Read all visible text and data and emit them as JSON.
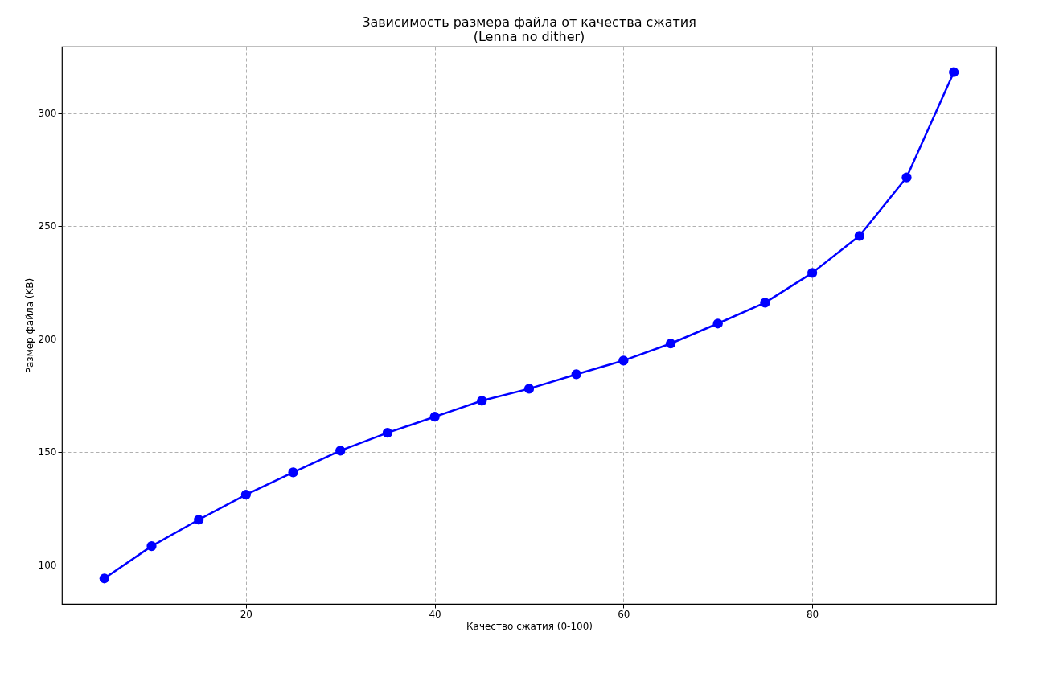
{
  "chart_data": {
    "type": "line",
    "title": "Зависимость размера файла от качества сжатия\n(Lenna no dither)",
    "xlabel": "Качество сжатия (0-100)",
    "ylabel": "Размер файла (KB)",
    "x": [
      5,
      10,
      15,
      20,
      25,
      30,
      35,
      40,
      45,
      50,
      55,
      60,
      65,
      70,
      75,
      80,
      85,
      90,
      95
    ],
    "series": [
      {
        "color": "#0000ff",
        "values": [
          93.9,
          108.2,
          119.9,
          131.0,
          140.9,
          150.5,
          158.4,
          165.5,
          172.6,
          177.9,
          184.3,
          190.4,
          197.9,
          206.8,
          216.0,
          229.2,
          245.6,
          271.5,
          318.1
        ]
      }
    ],
    "xlim": [
      0.5,
      99.5
    ],
    "ylim": [
      82.6,
      329.4
    ],
    "xticks": [
      20,
      40,
      60,
      80
    ],
    "yticks": [
      100,
      150,
      200,
      250,
      300
    ],
    "grid": true,
    "marker": "circle",
    "line_style": "solid"
  }
}
